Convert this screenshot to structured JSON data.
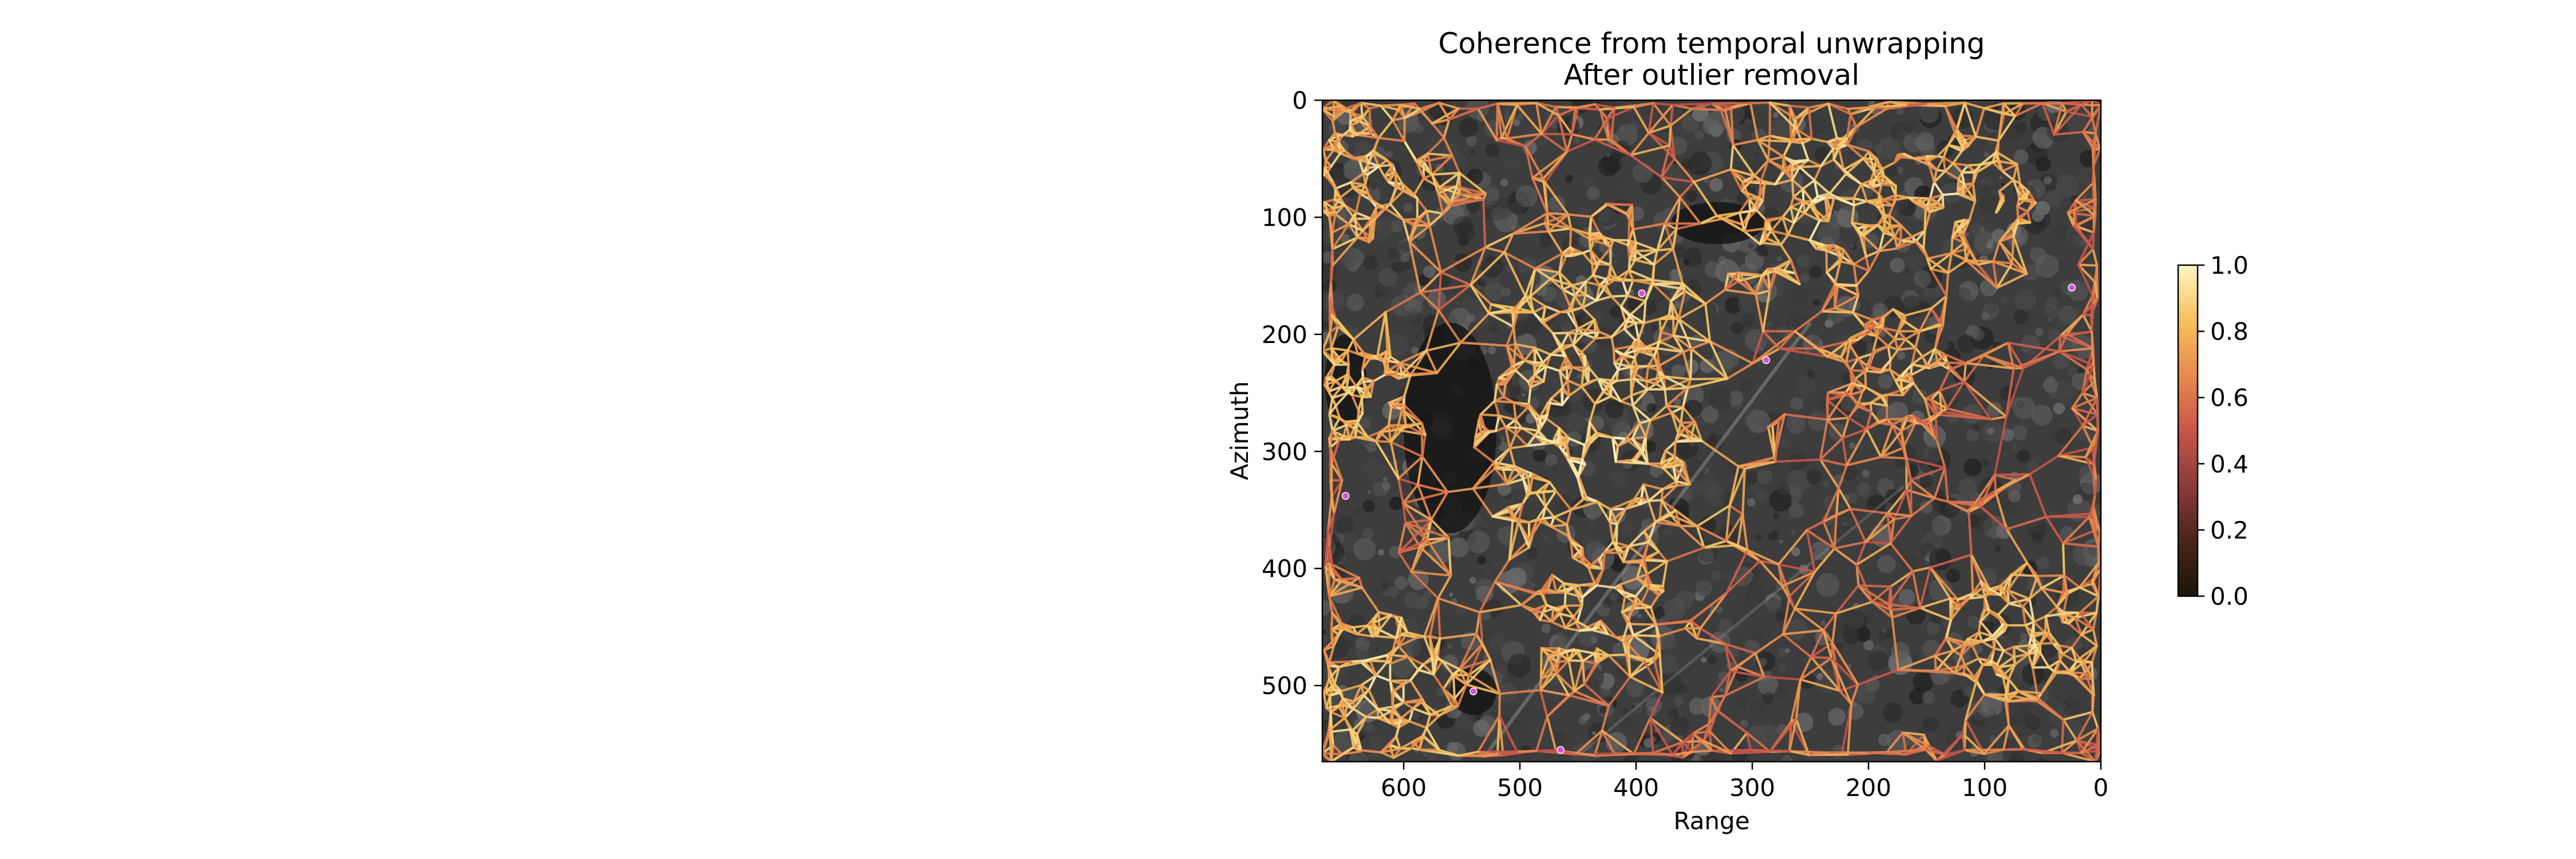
{
  "chart_data": {
    "type": "scatter",
    "title": "Coherence from temporal unwrapping",
    "subtitle": "After outlier removal",
    "xlabel": "Range",
    "ylabel": "Azimuth",
    "xlim": [
      670,
      0
    ],
    "ylim": [
      565,
      0
    ],
    "x_ticks": [
      "600",
      "500",
      "400",
      "300",
      "200",
      "100",
      "0"
    ],
    "x_tick_values": [
      600,
      500,
      400,
      300,
      200,
      100,
      0
    ],
    "y_ticks": [
      "0",
      "100",
      "200",
      "300",
      "400",
      "500"
    ],
    "y_tick_values": [
      0,
      100,
      200,
      300,
      400,
      500
    ],
    "colorbar": {
      "range": [
        0,
        1
      ],
      "ticks": [
        "0.0",
        "0.2",
        "0.4",
        "0.6",
        "0.8",
        "1.0"
      ],
      "tick_values": [
        0,
        0.2,
        0.4,
        0.6,
        0.8,
        1.0
      ],
      "colormap": [
        "#1c1505",
        "#4a2519",
        "#8e3b3b",
        "#c9554a",
        "#e98a4c",
        "#f6c35e",
        "#fff6c4"
      ]
    },
    "background": "grayscale amplitude image",
    "network": "triangulated arcs between points colored by coherence",
    "marked_points_color": "#d94fd4",
    "dense_regions": [
      {
        "x": 440,
        "y": 290,
        "r": 100,
        "coherence": 0.9
      },
      {
        "x": 430,
        "y": 185,
        "r": 80,
        "coherence": 0.88
      },
      {
        "x": 240,
        "y": 95,
        "r": 75,
        "coherence": 0.88
      },
      {
        "x": 125,
        "y": 85,
        "r": 70,
        "coherence": 0.85
      },
      {
        "x": 620,
        "y": 60,
        "r": 70,
        "coherence": 0.85
      },
      {
        "x": 640,
        "y": 250,
        "r": 55,
        "coherence": 0.85
      },
      {
        "x": 620,
        "y": 500,
        "r": 70,
        "coherence": 0.86
      },
      {
        "x": 430,
        "y": 430,
        "r": 60,
        "coherence": 0.86
      },
      {
        "x": 70,
        "y": 460,
        "r": 65,
        "coherence": 0.85
      },
      {
        "x": 170,
        "y": 230,
        "r": 55,
        "coherence": 0.8
      }
    ],
    "marked_points": [
      {
        "x": 395,
        "y": 165
      },
      {
        "x": 650,
        "y": 338
      },
      {
        "x": 540,
        "y": 505
      },
      {
        "x": 465,
        "y": 555
      },
      {
        "x": 25,
        "y": 160
      },
      {
        "x": 288,
        "y": 222
      }
    ]
  }
}
